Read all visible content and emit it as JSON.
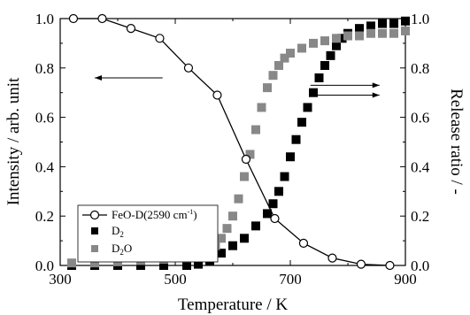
{
  "chart_data": {
    "type": "scatter",
    "xlabel": "Temperature / K",
    "ylabel_left": "Intensity / arb. unit",
    "ylabel_right": "Release ratio / -",
    "xlim": [
      300,
      900
    ],
    "ylim_left": [
      0.0,
      1.0
    ],
    "ylim_right": [
      0.0,
      1.0
    ],
    "x_ticks": [
      "300",
      "500",
      "700",
      "900"
    ],
    "y_ticks_left": [
      "0.0",
      "0.2",
      "0.4",
      "0.6",
      "0.8",
      "1.0"
    ],
    "y_ticks_right": [
      "0.0",
      "0.2",
      "0.4",
      "0.6",
      "0.8",
      "1.0"
    ],
    "grid": false,
    "legend_position": "lower-left",
    "series": [
      {
        "name": "FeO-D(2590 cm",
        "name_sup": "-1",
        "name_end": ")",
        "axis": "left",
        "marker": "open-circle-line",
        "color": "#000000",
        "x": [
          323,
          373,
          423,
          473,
          523,
          573,
          623,
          673,
          723,
          773,
          823,
          873
        ],
        "y": [
          1.0,
          1.0,
          0.96,
          0.92,
          0.8,
          0.69,
          0.43,
          0.19,
          0.09,
          0.03,
          0.005,
          0.0
        ]
      },
      {
        "name": "D",
        "name_sub": "2",
        "axis": "right",
        "marker": "filled-square",
        "color": "#000000",
        "x": [
          320,
          360,
          400,
          440,
          480,
          520,
          540,
          560,
          580,
          600,
          620,
          640,
          660,
          670,
          680,
          690,
          700,
          710,
          720,
          730,
          740,
          750,
          760,
          770,
          780,
          790,
          800,
          820,
          840,
          860,
          880,
          900
        ],
        "y": [
          0.0,
          0.0,
          0.0,
          0.0,
          0.0,
          0.0,
          0.005,
          0.02,
          0.05,
          0.08,
          0.11,
          0.16,
          0.21,
          0.25,
          0.3,
          0.36,
          0.44,
          0.51,
          0.58,
          0.64,
          0.7,
          0.76,
          0.81,
          0.85,
          0.89,
          0.92,
          0.94,
          0.96,
          0.97,
          0.98,
          0.98,
          0.99
        ]
      },
      {
        "name": "D",
        "name_sub": "2",
        "name_end": "O",
        "axis": "right",
        "marker": "filled-square",
        "color": "#888888",
        "x": [
          320,
          360,
          400,
          440,
          480,
          520,
          540,
          560,
          570,
          580,
          590,
          600,
          610,
          620,
          630,
          640,
          650,
          660,
          670,
          680,
          690,
          700,
          720,
          740,
          760,
          780,
          800,
          820,
          840,
          860,
          880,
          900
        ],
        "y": [
          0.01,
          0.01,
          0.015,
          0.02,
          0.025,
          0.03,
          0.04,
          0.06,
          0.08,
          0.11,
          0.15,
          0.2,
          0.27,
          0.36,
          0.45,
          0.55,
          0.64,
          0.72,
          0.77,
          0.81,
          0.84,
          0.86,
          0.88,
          0.9,
          0.91,
          0.92,
          0.93,
          0.93,
          0.94,
          0.94,
          0.94,
          0.95
        ]
      }
    ],
    "arrows": [
      {
        "axis_side": "left",
        "x_from": 478,
        "x_to": 360,
        "y": 0.76
      },
      {
        "axis_side": "right",
        "x_from": 735,
        "x_to": 855,
        "y": 0.73
      },
      {
        "axis_side": "right",
        "x_from": 735,
        "x_to": 855,
        "y": 0.69
      }
    ]
  }
}
